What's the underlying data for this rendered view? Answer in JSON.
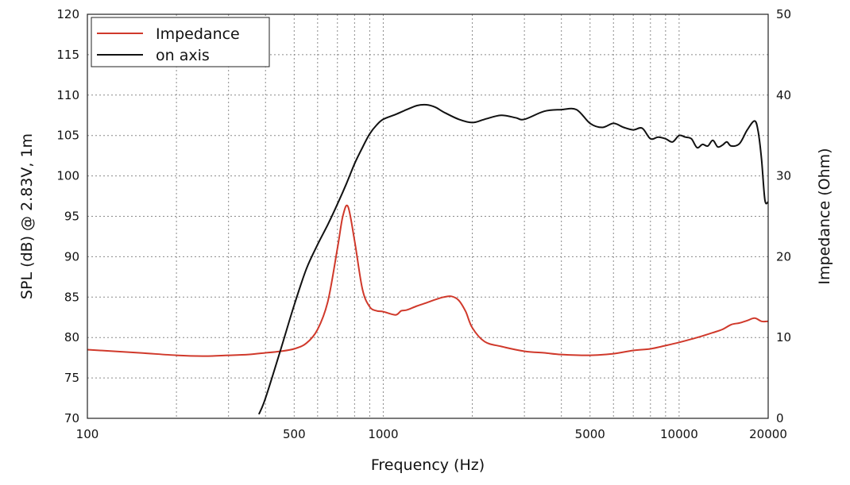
{
  "chart_data": {
    "type": "line",
    "title": "",
    "xlabel": "Frequency (Hz)",
    "ylabel": "SPL (dB) @ 2.83V, 1m",
    "y2label": "Impedance (Ohm)",
    "xscale": "log",
    "xlim": [
      100,
      20000
    ],
    "ylim": [
      70,
      120
    ],
    "y2lim": [
      0,
      50
    ],
    "grid": true,
    "legend_position": "top-left",
    "x_tick_labels": [
      "100",
      "500",
      "1000",
      "5000",
      "10000",
      "20000"
    ],
    "x_ticks": [
      100,
      500,
      1000,
      5000,
      10000,
      20000
    ],
    "y_ticks": [
      70,
      75,
      80,
      85,
      90,
      95,
      100,
      105,
      110,
      115,
      120
    ],
    "y2_ticks": [
      0,
      10,
      20,
      30,
      40,
      50
    ],
    "series": [
      {
        "name": "Impedance",
        "axis": "right",
        "color": "#d0392b",
        "x": [
          100,
          150,
          200,
          250,
          300,
          350,
          400,
          450,
          500,
          550,
          600,
          650,
          700,
          730,
          760,
          800,
          850,
          900,
          950,
          1000,
          1100,
          1150,
          1200,
          1300,
          1400,
          1500,
          1600,
          1700,
          1800,
          1900,
          2000,
          2200,
          2500,
          3000,
          3500,
          4000,
          5000,
          6000,
          7000,
          8000,
          9000,
          10000,
          11000,
          12000,
          13000,
          14000,
          15000,
          16000,
          17000,
          18000,
          19000,
          20000
        ],
        "values": [
          8.5,
          8.1,
          7.8,
          7.7,
          7.8,
          7.9,
          8.1,
          8.3,
          8.6,
          9.3,
          11.0,
          14.5,
          21.0,
          25.0,
          26.2,
          22.0,
          16.0,
          13.8,
          13.3,
          13.2,
          12.8,
          13.3,
          13.4,
          13.9,
          14.3,
          14.7,
          15.0,
          15.1,
          14.6,
          13.2,
          11.2,
          9.5,
          8.9,
          8.3,
          8.1,
          7.9,
          7.8,
          8.0,
          8.4,
          8.6,
          9.0,
          9.4,
          9.8,
          10.2,
          10.6,
          11.0,
          11.6,
          11.8,
          12.1,
          12.4,
          12.0,
          12.0
        ]
      },
      {
        "name": "on axis",
        "axis": "left",
        "color": "#111111",
        "x": [
          380,
          400,
          450,
          500,
          550,
          600,
          650,
          700,
          750,
          800,
          850,
          900,
          950,
          1000,
          1100,
          1200,
          1300,
          1400,
          1500,
          1600,
          1800,
          2000,
          2200,
          2500,
          2800,
          3000,
          3500,
          4000,
          4500,
          5000,
          5500,
          6000,
          6500,
          7000,
          7500,
          8000,
          8500,
          9000,
          9500,
          10000,
          10500,
          11000,
          11500,
          12000,
          12500,
          13000,
          13500,
          14000,
          14500,
          15000,
          16000,
          17000,
          18000,
          18500,
          19000,
          19500,
          20000
        ],
        "values": [
          70.5,
          72.5,
          78.5,
          84.0,
          88.5,
          91.5,
          94.0,
          96.5,
          99.0,
          101.5,
          103.5,
          105.2,
          106.3,
          107.0,
          107.6,
          108.2,
          108.7,
          108.8,
          108.5,
          107.9,
          107.0,
          106.6,
          107.0,
          107.5,
          107.2,
          107.0,
          108.0,
          108.2,
          108.2,
          106.5,
          106.0,
          106.5,
          106.0,
          105.7,
          105.9,
          104.6,
          104.8,
          104.6,
          104.2,
          105.0,
          104.8,
          104.6,
          103.5,
          103.9,
          103.7,
          104.4,
          103.6,
          103.8,
          104.2,
          103.7,
          104.0,
          105.7,
          106.8,
          105.5,
          102.0,
          97.0,
          96.8
        ]
      }
    ]
  }
}
